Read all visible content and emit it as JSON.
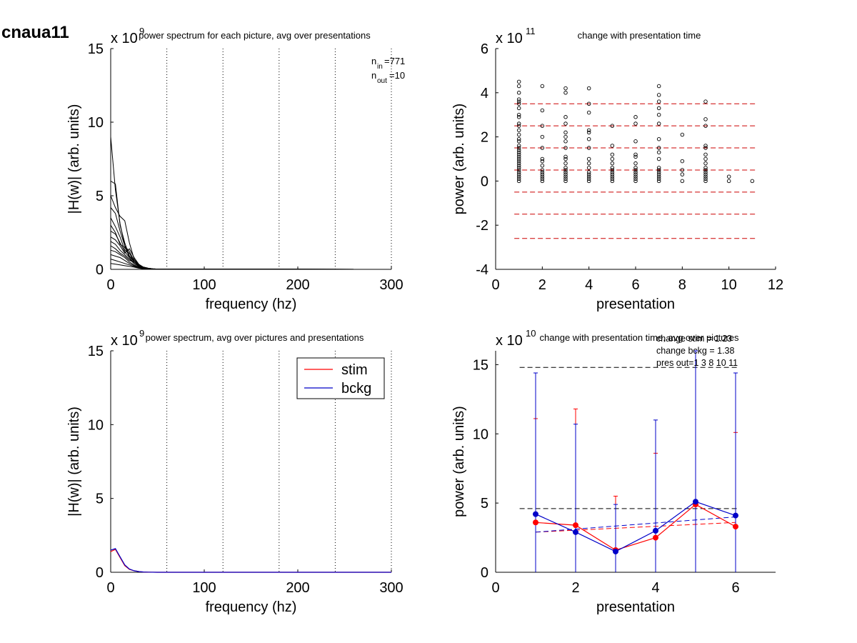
{
  "figure_title": "cnaua11",
  "colors": {
    "stim": "#ff0000",
    "bckg": "#0000c8",
    "curves": "#000000",
    "threshold_lines": "#cc0000",
    "mean_lines": "#000000"
  },
  "chart_data": [
    {
      "id": "tl",
      "type": "line",
      "title": "power spectrum for each picture, avg over presentations",
      "xlabel": "frequency (hz)",
      "ylabel": "|H(w)| (arb. units)",
      "exponent_label": "x 10",
      "exponent": "9",
      "xlim": [
        0,
        300
      ],
      "ylim": [
        0,
        15
      ],
      "xticks": [
        0,
        100,
        200,
        300
      ],
      "yticks": [
        0,
        5,
        10,
        15
      ],
      "vlines": [
        60,
        120,
        180,
        240,
        300
      ],
      "grid": false,
      "annotation": {
        "n_in_label": "n",
        "n_in_sub": "in",
        "n_in_value": "=771",
        "n_out_label": "n",
        "n_out_sub": "out",
        "n_out_value": "=10"
      },
      "series": [
        {
          "x": [
            0,
            5,
            10,
            15,
            20,
            25,
            30,
            35,
            40,
            45,
            50,
            55,
            60
          ],
          "values": [
            9.0,
            5.4,
            3.1,
            1.6,
            0.8,
            0.4,
            0.2,
            0.1,
            0.05,
            0.03,
            0.02,
            0.01,
            0.01
          ]
        },
        {
          "x": [
            0,
            5,
            10,
            15,
            20,
            25,
            30,
            35,
            40,
            45,
            50,
            55,
            60
          ],
          "values": [
            6.0,
            5.8,
            3.0,
            1.8,
            0.9,
            0.5,
            0.3,
            0.15,
            0.08,
            0.04,
            0.02,
            0.01,
            0.01
          ]
        },
        {
          "x": [
            0,
            5,
            10,
            15,
            20,
            25,
            30,
            35,
            40,
            45,
            50,
            55,
            60
          ],
          "values": [
            5.0,
            4.2,
            3.6,
            3.3,
            1.8,
            0.7,
            0.3,
            0.15,
            0.08,
            0.04,
            0.02,
            0.01,
            0.01
          ]
        },
        {
          "x": [
            0,
            5,
            10,
            15,
            20,
            25,
            30,
            35,
            40,
            45,
            50,
            55,
            60
          ],
          "values": [
            4.2,
            3.8,
            2.6,
            1.6,
            1.2,
            0.6,
            0.3,
            0.15,
            0.08,
            0.04,
            0.02,
            0.01,
            0.01
          ]
        },
        {
          "x": [
            0,
            5,
            10,
            15,
            20,
            25,
            30,
            35,
            40,
            45,
            50,
            55,
            60
          ],
          "values": [
            3.5,
            2.9,
            2.2,
            1.3,
            1.1,
            0.5,
            0.25,
            0.12,
            0.06,
            0.03,
            0.02,
            0.01,
            0.01
          ]
        },
        {
          "x": [
            0,
            5,
            10,
            15,
            20,
            25,
            30,
            35,
            40,
            45,
            50,
            55,
            60
          ],
          "values": [
            3.0,
            2.5,
            1.7,
            1.5,
            0.9,
            0.6,
            0.3,
            0.15,
            0.07,
            0.03,
            0.02,
            0.01,
            0.01
          ]
        },
        {
          "x": [
            0,
            5,
            10,
            15,
            20,
            25,
            30,
            35,
            40,
            45,
            50,
            55,
            60
          ],
          "values": [
            2.6,
            2.4,
            1.8,
            1.2,
            0.8,
            0.4,
            0.2,
            0.1,
            0.06,
            0.03,
            0.02,
            0.01,
            0.01
          ]
        },
        {
          "x": [
            0,
            5,
            10,
            15,
            20,
            25,
            30,
            35,
            40,
            45,
            50,
            55,
            60
          ],
          "values": [
            2.2,
            2.0,
            1.6,
            1.1,
            1.4,
            0.8,
            0.35,
            0.15,
            0.07,
            0.03,
            0.02,
            0.01,
            0.01
          ]
        },
        {
          "x": [
            0,
            5,
            10,
            15,
            20,
            25,
            30,
            35,
            40,
            45,
            50,
            55,
            60
          ],
          "values": [
            1.9,
            1.7,
            1.3,
            1.0,
            0.7,
            0.4,
            0.2,
            0.1,
            0.05,
            0.03,
            0.02,
            0.01,
            0.01
          ]
        },
        {
          "x": [
            0,
            5,
            10,
            15,
            20,
            25,
            30,
            35,
            40,
            45,
            50,
            55,
            60
          ],
          "values": [
            1.6,
            1.4,
            1.1,
            0.9,
            0.6,
            0.5,
            0.25,
            0.12,
            0.06,
            0.03,
            0.02,
            0.01,
            0.01
          ]
        },
        {
          "x": [
            0,
            5,
            10,
            15,
            20,
            25,
            30,
            35,
            40,
            45,
            50,
            55,
            60
          ],
          "values": [
            1.3,
            1.2,
            1.0,
            0.8,
            0.5,
            0.3,
            0.15,
            0.08,
            0.05,
            0.03,
            0.02,
            0.01,
            0.01
          ]
        },
        {
          "x": [
            0,
            5,
            10,
            15,
            20,
            25,
            30,
            35,
            40,
            45,
            50,
            55,
            60
          ],
          "values": [
            1.0,
            0.9,
            0.8,
            0.6,
            0.4,
            0.25,
            0.12,
            0.06,
            0.04,
            0.02,
            0.01,
            0.01,
            0.01
          ]
        },
        {
          "x": [
            0,
            5,
            10,
            15,
            20,
            25,
            30,
            35,
            40,
            45,
            50,
            55,
            60
          ],
          "values": [
            0.7,
            0.6,
            0.5,
            0.4,
            0.3,
            0.2,
            0.1,
            0.05,
            0.03,
            0.02,
            0.01,
            0.01,
            0.01
          ]
        },
        {
          "x": [
            0,
            5,
            10,
            15,
            20,
            25,
            30,
            35,
            40,
            45,
            50,
            55,
            60
          ],
          "values": [
            0.4,
            0.35,
            0.3,
            0.25,
            0.2,
            0.15,
            0.08,
            0.04,
            0.02,
            0.01,
            0.01,
            0.01,
            0.01
          ]
        }
      ]
    },
    {
      "id": "tr",
      "type": "scatter",
      "title": "change with presentation time",
      "xlabel": "presentation",
      "ylabel": "power (arb. units)",
      "exponent_label": "x 10",
      "exponent": "11",
      "xlim": [
        0,
        12
      ],
      "ylim": [
        -4,
        6
      ],
      "xticks": [
        0,
        2,
        4,
        6,
        8,
        10,
        12
      ],
      "yticks": [
        -4,
        -2,
        0,
        2,
        4,
        6
      ],
      "hlines": [
        3.5,
        2.5,
        1.5,
        0.5,
        -0.5,
        -1.5,
        -2.6
      ],
      "grid": false,
      "points": [
        {
          "x": 1,
          "y": [
            4.5,
            4.3,
            4.0,
            3.7,
            3.6,
            3.5,
            3.3,
            3.0,
            2.9,
            2.6,
            2.5,
            2.3,
            2.1,
            1.9,
            1.8,
            1.6,
            1.5,
            1.4,
            1.3,
            1.2,
            1.1,
            1.0,
            0.9,
            0.8,
            0.7,
            0.6,
            0.5,
            0.4,
            0.3,
            0.2,
            0.1,
            0.0
          ]
        },
        {
          "x": 2,
          "y": [
            4.3,
            3.2,
            2.5,
            2.0,
            1.5,
            1.0,
            0.9,
            0.7,
            0.5,
            0.4,
            0.3,
            0.2,
            0.1,
            0.0
          ]
        },
        {
          "x": 3,
          "y": [
            4.2,
            4.0,
            2.9,
            2.6,
            2.2,
            2.0,
            1.8,
            1.5,
            1.1,
            1.0,
            0.8,
            0.6,
            0.5,
            0.4,
            0.3,
            0.2,
            0.1,
            0.0
          ]
        },
        {
          "x": 4,
          "y": [
            4.2,
            3.5,
            3.1,
            2.3,
            2.2,
            1.9,
            1.5,
            1.0,
            0.8,
            0.6,
            0.4,
            0.3,
            0.2,
            0.1,
            0.0
          ]
        },
        {
          "x": 5,
          "y": [
            2.5,
            1.6,
            1.2,
            1.0,
            0.8,
            0.6,
            0.5,
            0.4,
            0.3,
            0.2,
            0.1,
            0.0
          ]
        },
        {
          "x": 6,
          "y": [
            2.9,
            2.6,
            1.8,
            1.2,
            1.1,
            0.8,
            0.6,
            0.5,
            0.4,
            0.3,
            0.2,
            0.1,
            0.0
          ]
        },
        {
          "x": 7,
          "y": [
            4.3,
            3.9,
            3.6,
            3.3,
            3.0,
            2.6,
            1.9,
            1.5,
            1.3,
            1.0,
            0.6,
            0.5,
            0.4,
            0.3,
            0.2,
            0.1,
            0.0
          ]
        },
        {
          "x": 8,
          "y": [
            2.1,
            0.9,
            0.5,
            0.3,
            0.0
          ]
        },
        {
          "x": 9,
          "y": [
            3.6,
            2.8,
            2.5,
            1.6,
            1.5,
            1.2,
            1.0,
            0.8,
            0.6,
            0.5,
            0.4,
            0.3,
            0.2,
            0.1,
            0.0
          ]
        },
        {
          "x": 10,
          "y": [
            0.2,
            0.0
          ]
        },
        {
          "x": 11,
          "y": [
            0.0
          ]
        }
      ]
    },
    {
      "id": "bl",
      "type": "line",
      "title": "power spectrum, avg over pictures and presentations",
      "xlabel": "frequency (hz)",
      "ylabel": "|H(w)| (arb. units)",
      "exponent_label": "x 10",
      "exponent": "9",
      "xlim": [
        0,
        300
      ],
      "ylim": [
        0,
        15
      ],
      "xticks": [
        0,
        100,
        200,
        300
      ],
      "yticks": [
        0,
        5,
        10,
        15
      ],
      "vlines": [
        60,
        120,
        180,
        240,
        300
      ],
      "legend": {
        "placement": "top-right",
        "entries": [
          "stim",
          "bckg"
        ]
      },
      "grid": false,
      "series": [
        {
          "name": "stim",
          "x": [
            0,
            5,
            10,
            15,
            20,
            25,
            30,
            35,
            40,
            50,
            60,
            300
          ],
          "values": [
            1.4,
            1.55,
            1.0,
            0.45,
            0.2,
            0.1,
            0.05,
            0.02,
            0.01,
            0.0,
            0.0,
            0.0
          ]
        },
        {
          "name": "bckg",
          "x": [
            0,
            5,
            10,
            15,
            20,
            25,
            30,
            35,
            40,
            50,
            60,
            300
          ],
          "values": [
            1.5,
            1.6,
            1.05,
            0.5,
            0.22,
            0.1,
            0.05,
            0.02,
            0.01,
            0.0,
            0.0,
            0.0
          ]
        }
      ]
    },
    {
      "id": "br",
      "type": "line",
      "title": "change with presentation time, avg over pictures",
      "xlabel": "presentation",
      "ylabel": "power (arb. units)",
      "exponent_label": "x 10",
      "exponent": "10",
      "xlim": [
        0,
        7
      ],
      "ylim": [
        0,
        16
      ],
      "xticks": [
        0,
        2,
        4,
        6
      ],
      "yticks": [
        0,
        5,
        10,
        15
      ],
      "annotations": [
        "change stim = 1.23",
        "change bckg = 1.38",
        "pres out=1 3 8 10 11"
      ],
      "hlines": [
        14.8,
        4.6
      ],
      "grid": false,
      "series": [
        {
          "name": "stim",
          "x": [
            1,
            2,
            3,
            4,
            5,
            6
          ],
          "values": [
            3.6,
            3.4,
            1.6,
            2.5,
            4.9,
            3.3
          ],
          "err_top": [
            11.1,
            11.8,
            5.5,
            8.6,
            16,
            10.1
          ]
        },
        {
          "name": "bckg",
          "x": [
            1,
            2,
            3,
            4,
            5,
            6
          ],
          "values": [
            4.2,
            2.9,
            1.5,
            3.0,
            5.1,
            4.1
          ],
          "err_top": [
            14.4,
            10.7,
            4.9,
            11.0,
            16,
            14.4
          ]
        }
      ],
      "trend": [
        {
          "name": "stim",
          "x": [
            1,
            6
          ],
          "values": [
            2.9,
            3.6
          ]
        },
        {
          "name": "bckg",
          "x": [
            1,
            6
          ],
          "values": [
            2.9,
            4.0
          ]
        }
      ]
    }
  ]
}
